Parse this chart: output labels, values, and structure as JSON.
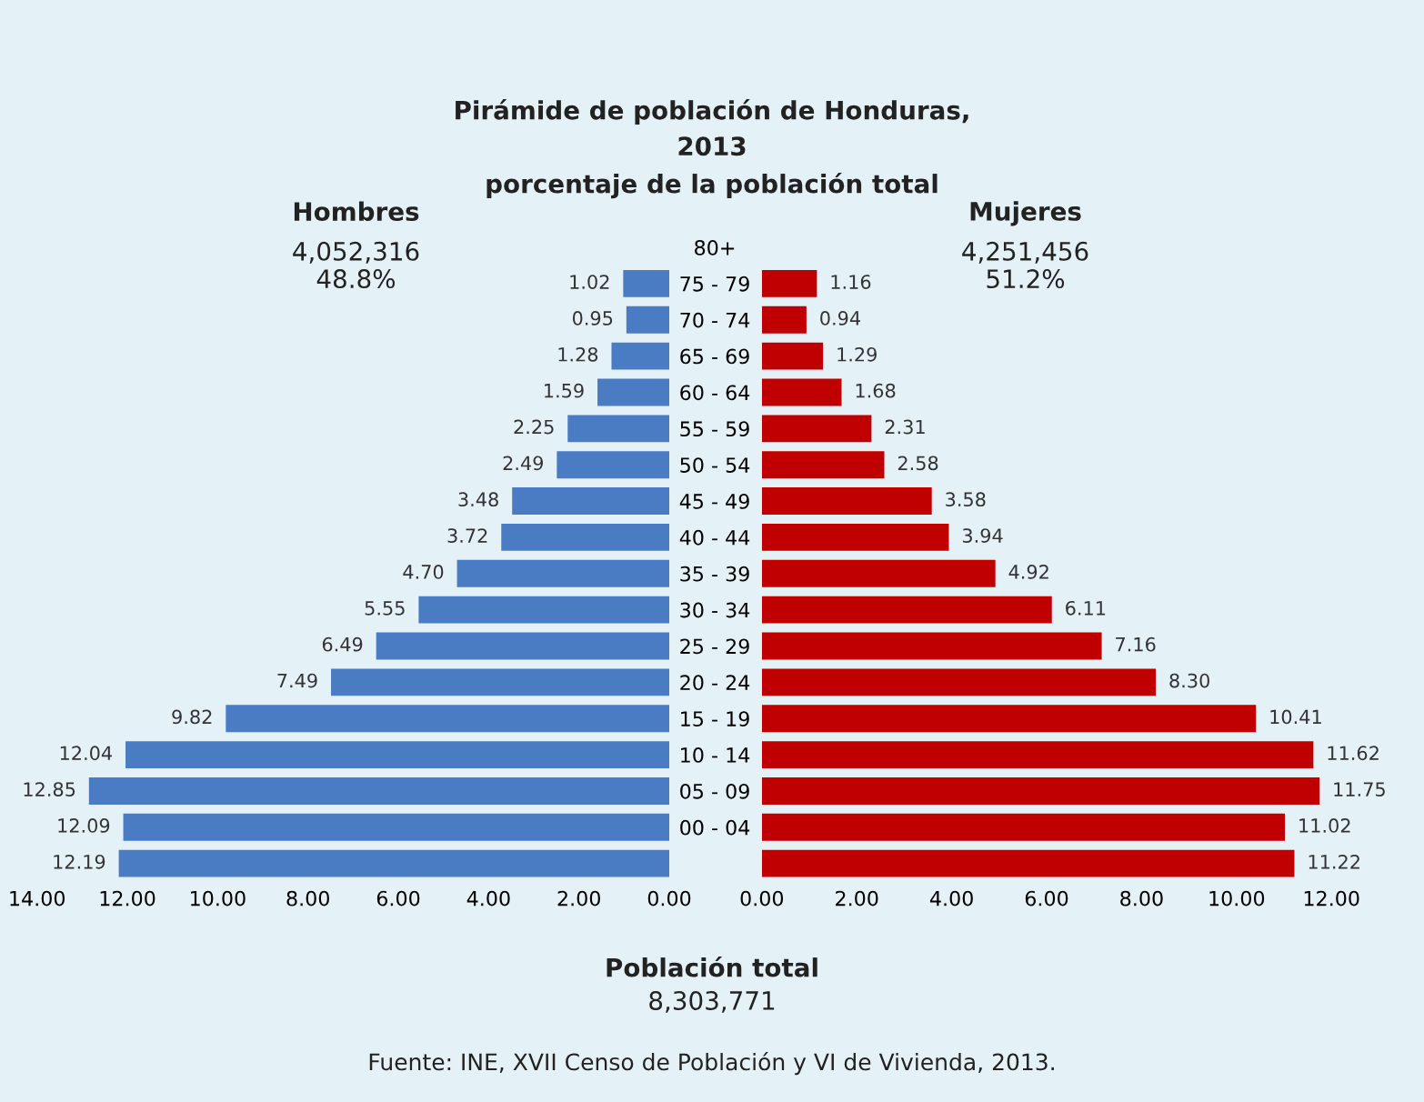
{
  "chart_data": [
    {
      "type": "bar",
      "orientation": "horizontal",
      "title": "Pirámide de población de Honduras,\n2013\nporcentaje de la población total",
      "categories": [
        "80+",
        "75 - 79",
        "70 - 74",
        "65 - 69",
        "60 - 64",
        "55 - 59",
        "50 - 54",
        "45 - 49",
        "40 - 44",
        "35 - 39",
        "30 - 34",
        "25 - 29",
        "20 - 24",
        "15 - 19",
        "10 - 14",
        "05 - 09",
        "00 - 04",
        null
      ],
      "series": [
        {
          "name": "Hombres",
          "color": "#4a7cc4",
          "values": [
            null,
            1.02,
            0.95,
            1.28,
            1.59,
            2.25,
            2.49,
            3.48,
            3.72,
            4.7,
            5.55,
            6.49,
            7.49,
            9.82,
            12.04,
            12.85,
            12.09,
            12.19
          ],
          "value_labels": [
            null,
            "1.02",
            "0.95",
            "1.28",
            "1.59",
            "2.25",
            "2.49",
            "3.48",
            "3.72",
            "4.70",
            "5.55",
            "6.49",
            "7.49",
            "9.82",
            "12.04",
            "12.85",
            "12.09",
            "12.19"
          ]
        }
      ],
      "xlim": [
        14,
        0
      ],
      "xticks": [
        {
          "value": 14,
          "label": "14.00"
        },
        {
          "value": 12,
          "label": "12.00"
        },
        {
          "value": 10,
          "label": "10.00"
        },
        {
          "value": 8,
          "label": "8.00"
        },
        {
          "value": 6,
          "label": "6.00"
        },
        {
          "value": 4,
          "label": "4.00"
        },
        {
          "value": 2,
          "label": "2.00"
        },
        {
          "value": 0,
          "label": "0.00"
        }
      ],
      "grid": false,
      "legend": false,
      "annotations": [
        "4,052,316",
        "48.8%",
        "Población total",
        "8,303,771",
        "Fuente: INE, XVII Censo de Población y VI de Vivienda, 2013."
      ]
    },
    {
      "type": "bar",
      "orientation": "horizontal",
      "categories": [
        null,
        null,
        null,
        null,
        null,
        null,
        null,
        null,
        null,
        null,
        null,
        null,
        null,
        null,
        null,
        null,
        null,
        null
      ],
      "series": [
        {
          "name": "Mujeres",
          "color": "#c00000",
          "values": [
            null,
            1.16,
            0.94,
            1.29,
            1.68,
            2.31,
            2.58,
            3.58,
            3.94,
            4.92,
            6.11,
            7.16,
            8.3,
            10.41,
            11.62,
            11.75,
            11.02,
            11.22
          ],
          "value_labels": [
            null,
            "1.16",
            "0.94",
            "1.29",
            "1.68",
            "2.31",
            "2.58",
            "3.58",
            "3.94",
            "4.92",
            "6.11",
            "7.16",
            "8.30",
            "10.41",
            "11.62",
            "11.75",
            "11.02",
            "11.22"
          ]
        }
      ],
      "xlim": [
        0,
        12
      ],
      "xticks": [
        {
          "value": 0,
          "label": "0.00"
        },
        {
          "value": 2,
          "label": "2.00"
        },
        {
          "value": 4,
          "label": "4.00"
        },
        {
          "value": 6,
          "label": "6.00"
        },
        {
          "value": 8,
          "label": "8.00"
        },
        {
          "value": 10,
          "label": "10.00"
        },
        {
          "value": 12,
          "label": "12.00"
        }
      ],
      "tick_labels": "x",
      "grid": false,
      "legend": false,
      "annotations": [
        "4,251,456",
        "51.2%"
      ]
    }
  ]
}
